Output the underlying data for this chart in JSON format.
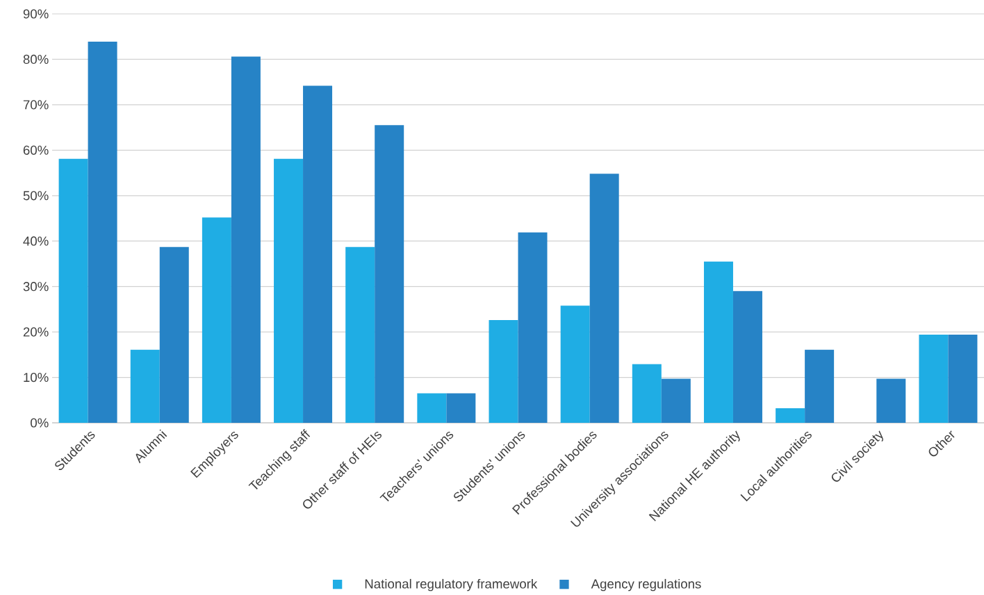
{
  "chart_data": {
    "type": "bar",
    "categories": [
      "Students",
      "Alumni",
      "Employers",
      "Teaching staff",
      "Other staff of HEIs",
      "Teachers' unions",
      "Students' unions",
      "Professional bodies",
      "University associations",
      "National HE authority",
      "Local authorities",
      "Civil society",
      "Other"
    ],
    "series": [
      {
        "name": "National regulatory framework",
        "color": "#1fade4",
        "values": [
          58.1,
          16.1,
          45.2,
          58.1,
          38.7,
          6.5,
          22.6,
          25.8,
          12.9,
          35.5,
          3.2,
          0,
          19.4
        ]
      },
      {
        "name": "Agency regulations",
        "color": "#2683c6",
        "values": [
          83.9,
          38.7,
          80.6,
          74.2,
          65.5,
          6.5,
          41.9,
          54.8,
          9.7,
          29.0,
          16.1,
          9.7,
          19.4
        ]
      }
    ],
    "ylim": [
      0,
      90
    ],
    "yticks": [
      {
        "value": 0,
        "label": "0%"
      },
      {
        "value": 10,
        "label": "10%"
      },
      {
        "value": 20,
        "label": "20%"
      },
      {
        "value": 30,
        "label": "30%"
      },
      {
        "value": 40,
        "label": "40%"
      },
      {
        "value": 50,
        "label": "50%"
      },
      {
        "value": 60,
        "label": "60%"
      },
      {
        "value": 70,
        "label": "70%"
      },
      {
        "value": 80,
        "label": "80%"
      },
      {
        "value": 90,
        "label": "90%"
      }
    ],
    "grid": "y",
    "legend": "bottom"
  }
}
